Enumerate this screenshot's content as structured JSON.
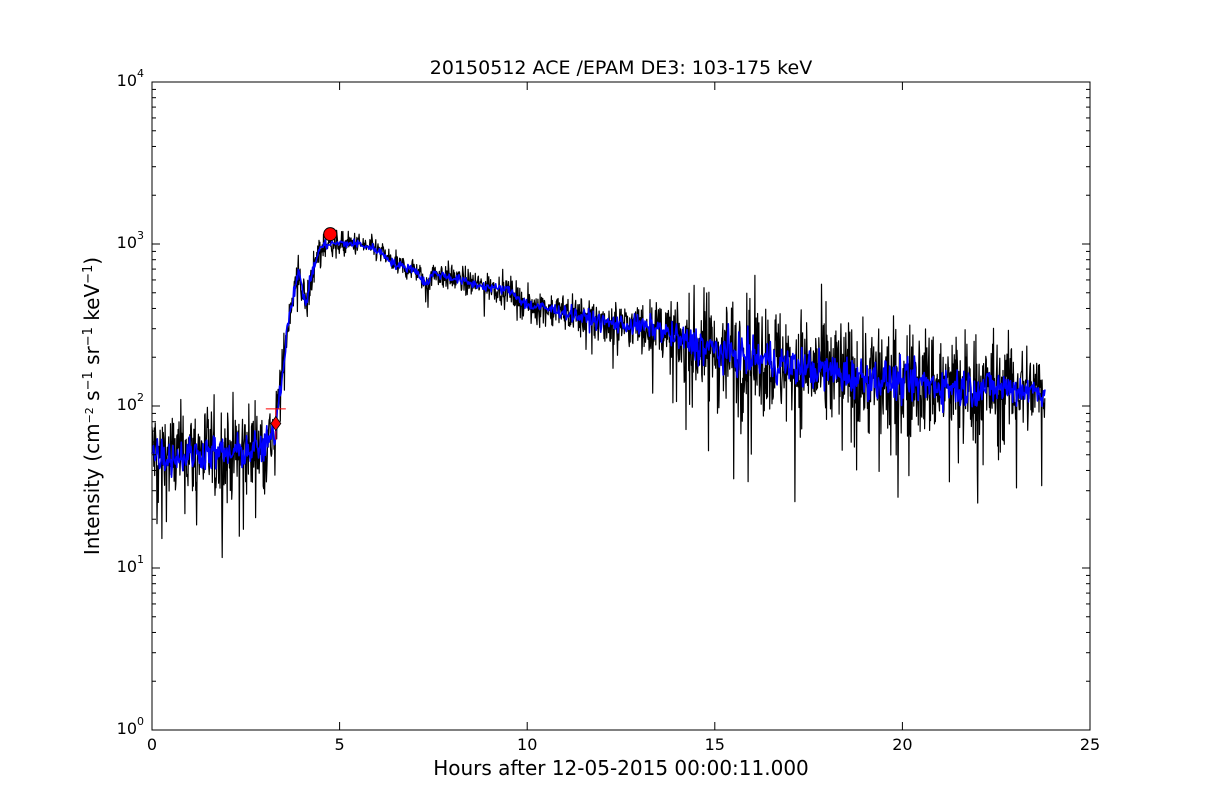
{
  "chart_data": {
    "type": "line",
    "title": "20150512 ACE /EPAM DE3: 103-175 keV",
    "xlabel": "Hours after 12-05-2015 00:00:11.000",
    "ylabel": {
      "prefix": "Intensity (cm",
      "e1": "−2",
      "s": " s",
      "e2": "−1",
      "sr": " sr",
      "e3": "−1",
      "kev": " keV",
      "e4": "−1",
      "suffix": ")"
    },
    "xlim": [
      0,
      25
    ],
    "ylim": [
      1,
      10000
    ],
    "yscale": "log",
    "x_ticks": [
      "0",
      "5",
      "10",
      "15",
      "20",
      "25"
    ],
    "y_ticks": [
      {
        "base": "10",
        "exp": "0"
      },
      {
        "base": "10",
        "exp": "1"
      },
      {
        "base": "10",
        "exp": "2"
      },
      {
        "base": "10",
        "exp": "3"
      },
      {
        "base": "10",
        "exp": "4"
      }
    ],
    "grid": false,
    "series": [
      {
        "color": "#000000",
        "x": [
          0,
          0.5,
          1.0,
          1.5,
          2.0,
          2.5,
          3.0,
          3.3,
          3.5,
          3.7,
          3.9,
          4.1,
          4.3,
          4.5,
          4.7,
          5.0,
          5.5,
          6.0,
          6.5,
          7.0,
          7.3,
          7.5,
          8.0,
          8.5,
          9.0,
          9.5,
          10.0,
          10.5,
          11.0,
          11.5,
          12.0,
          12.5,
          13.0,
          13.5,
          14.0,
          14.5,
          15.0,
          15.5,
          16.0,
          16.5,
          17.0,
          17.5,
          18.0,
          18.5,
          19.0,
          19.5,
          20.0,
          20.5,
          21.0,
          21.5,
          22.0,
          22.5,
          23.0,
          23.5,
          23.8
        ],
        "y": [
          52,
          48,
          50,
          52,
          50,
          53,
          55,
          70,
          170,
          420,
          650,
          420,
          700,
          960,
          1000,
          1010,
          1000,
          920,
          740,
          700,
          560,
          660,
          620,
          570,
          540,
          520,
          420,
          400,
          380,
          350,
          330,
          320,
          310,
          300,
          260,
          240,
          220,
          210,
          200,
          190,
          175,
          170,
          165,
          155,
          150,
          145,
          140,
          138,
          135,
          130,
          130,
          130,
          128,
          125,
          120
        ],
        "noise": [
          0.22,
          0.22,
          0.22,
          0.22,
          0.22,
          0.22,
          0.2,
          0.15,
          0.12,
          0.1,
          0.1,
          0.08,
          0.07,
          0.06,
          0.05,
          0.05,
          0.05,
          0.05,
          0.05,
          0.05,
          0.05,
          0.06,
          0.06,
          0.06,
          0.06,
          0.06,
          0.07,
          0.08,
          0.08,
          0.09,
          0.1,
          0.1,
          0.11,
          0.12,
          0.16,
          0.22,
          0.25,
          0.25,
          0.25,
          0.25,
          0.25,
          0.25,
          0.25,
          0.25,
          0.25,
          0.25,
          0.25,
          0.25,
          0.25,
          0.24,
          0.24,
          0.23,
          0.22,
          0.2,
          0.18
        ]
      },
      {
        "color": "#0000ff",
        "x": [
          0,
          0.5,
          1.0,
          1.5,
          2.0,
          2.5,
          3.0,
          3.3,
          3.5,
          3.7,
          3.9,
          4.1,
          4.3,
          4.5,
          4.7,
          5.0,
          5.5,
          6.0,
          6.5,
          7.0,
          7.3,
          7.5,
          8.0,
          8.5,
          9.0,
          9.5,
          10.0,
          10.5,
          11.0,
          11.5,
          12.0,
          12.5,
          13.0,
          13.5,
          14.0,
          14.5,
          15.0,
          15.5,
          16.0,
          16.5,
          17.0,
          17.5,
          18.0,
          18.5,
          19.0,
          19.5,
          20.0,
          20.5,
          21.0,
          21.5,
          22.0,
          22.5,
          23.0,
          23.5,
          23.8
        ],
        "y": [
          52,
          48,
          50,
          52,
          50,
          53,
          55,
          70,
          170,
          420,
          650,
          420,
          700,
          960,
          1000,
          1010,
          1000,
          920,
          740,
          700,
          560,
          660,
          620,
          570,
          540,
          520,
          420,
          400,
          380,
          350,
          330,
          320,
          310,
          300,
          260,
          240,
          220,
          210,
          200,
          190,
          175,
          170,
          165,
          155,
          150,
          145,
          140,
          138,
          135,
          130,
          130,
          130,
          128,
          125,
          120
        ],
        "noise": [
          0.08,
          0.08,
          0.08,
          0.08,
          0.08,
          0.08,
          0.08,
          0.06,
          0.05,
          0.04,
          0.04,
          0.03,
          0.03,
          0.02,
          0.02,
          0.02,
          0.02,
          0.02,
          0.02,
          0.02,
          0.02,
          0.02,
          0.02,
          0.02,
          0.02,
          0.02,
          0.03,
          0.03,
          0.03,
          0.04,
          0.04,
          0.04,
          0.05,
          0.05,
          0.06,
          0.08,
          0.09,
          0.09,
          0.09,
          0.09,
          0.09,
          0.09,
          0.09,
          0.09,
          0.09,
          0.09,
          0.09,
          0.09,
          0.09,
          0.09,
          0.09,
          0.08,
          0.08,
          0.07,
          0.06
        ]
      }
    ],
    "markers": [
      {
        "shape": "diamond",
        "color": "#ff0000",
        "x": 3.3,
        "y": 78
      },
      {
        "shape": "circle",
        "color": "#ff0000",
        "x": 4.75,
        "y": 1150
      }
    ],
    "errorbar": {
      "color": "#ff0000",
      "x": 3.3,
      "y_low": 62,
      "y_high": 96
    }
  }
}
